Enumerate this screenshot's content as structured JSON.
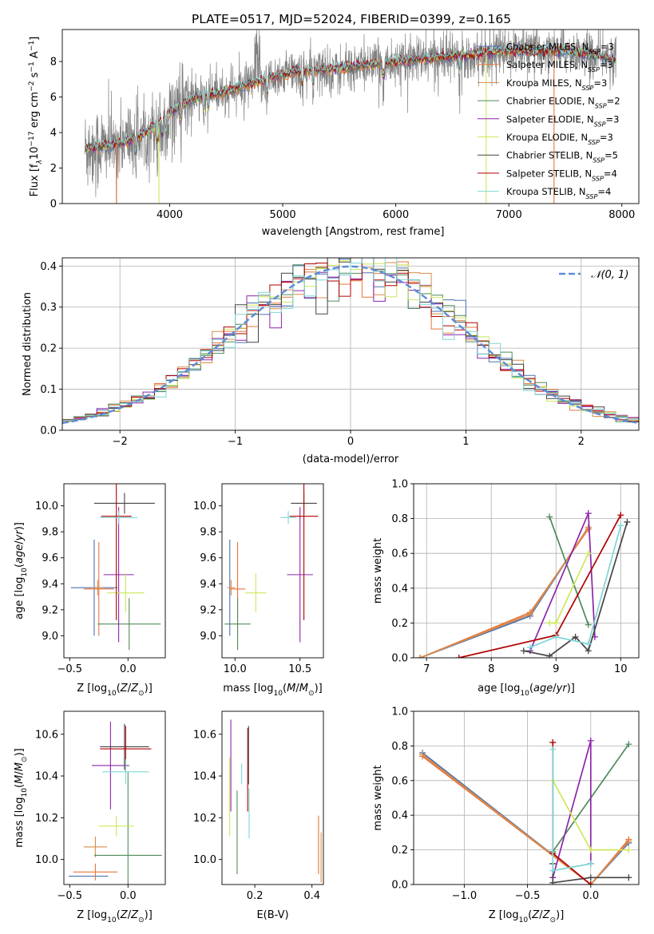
{
  "figure_title": "PLATE=0517, MJD=52024, FIBERID=0399, z=0.165",
  "colors": {
    "chabrier_miles": "#4c72b0",
    "salpeter_miles": "#e8743b",
    "kroupa_miles": "#d98c4a",
    "chabrier_elodie": "#4f8a5b",
    "salpeter_elodie": "#8e24aa",
    "kroupa_elodie": "#cde85a",
    "chabrier_stelib": "#444444",
    "salpeter_stelib": "#b00000",
    "kroupa_stelib": "#7fd6d6",
    "data": "#808080",
    "normal": "#5b8bd9"
  },
  "chart_data": [
    {
      "id": "spectrum",
      "type": "line",
      "title": "PLATE=0517, MJD=52024, FIBERID=0399, z=0.165",
      "xlabel": "wavelength [Angstrom, rest frame]",
      "ylabel": "Flux [f_λ 10^-17 erg cm^-2 s^-1 A^-1]",
      "xlim": [
        3050,
        8150
      ],
      "ylim": [
        0,
        9.8
      ],
      "xticks": [
        4000,
        5000,
        6000,
        7000,
        8000
      ],
      "yticks": [
        0,
        2,
        4,
        6,
        8
      ],
      "grid": false,
      "legend_position": "top-right",
      "data_series": {
        "name": "data",
        "x_range": [
          3250,
          7950
        ]
      },
      "model_continuum": [
        {
          "x": 3250,
          "y": 3.1
        },
        {
          "x": 3500,
          "y": 3.3
        },
        {
          "x": 3700,
          "y": 3.7
        },
        {
          "x": 3900,
          "y": 4.4
        },
        {
          "x": 4000,
          "y": 5.1
        },
        {
          "x": 4200,
          "y": 5.9
        },
        {
          "x": 4500,
          "y": 6.3
        },
        {
          "x": 4800,
          "y": 6.9
        },
        {
          "x": 5100,
          "y": 7.4
        },
        {
          "x": 5500,
          "y": 7.6
        },
        {
          "x": 6000,
          "y": 8.0
        },
        {
          "x": 6500,
          "y": 8.3
        },
        {
          "x": 7000,
          "y": 8.6
        },
        {
          "x": 7500,
          "y": 8.6
        },
        {
          "x": 7950,
          "y": 8.1
        }
      ],
      "series": [
        {
          "name": "Chabrier MILES, N_SSP=3",
          "label": "Chabrier MILES, N",
          "sub": "SSP",
          "suffix": "=3",
          "color_key": "chabrier_miles"
        },
        {
          "name": "Salpeter MILES, N_SSP=3",
          "label": "Salpeter MILES, N",
          "sub": "SSP",
          "suffix": "=3",
          "color_key": "salpeter_miles"
        },
        {
          "name": "Kroupa MILES, N_SSP=3",
          "label": "Kroupa MILES, N",
          "sub": "SSP",
          "suffix": "=3",
          "color_key": "kroupa_miles"
        },
        {
          "name": "Chabrier ELODIE, N_SSP=2",
          "label": "Chabrier ELODIE, N",
          "sub": "SSP",
          "suffix": "=2",
          "color_key": "chabrier_elodie"
        },
        {
          "name": "Salpeter ELODIE, N_SSP=3",
          "label": "Salpeter ELODIE, N",
          "sub": "SSP",
          "suffix": "=3",
          "color_key": "salpeter_elodie"
        },
        {
          "name": "Kroupa ELODIE, N_SSP=3",
          "label": "Kroupa ELODIE, N",
          "sub": "SSP",
          "suffix": "=3",
          "color_key": "kroupa_elodie"
        },
        {
          "name": "Chabrier STELIB, N_SSP=5",
          "label": "Chabrier STELIB, N",
          "sub": "SSP",
          "suffix": "=5",
          "color_key": "chabrier_stelib"
        },
        {
          "name": "Salpeter STELIB, N_SSP=4",
          "label": "Salpeter STELIB, N",
          "sub": "SSP",
          "suffix": "=4",
          "color_key": "salpeter_stelib"
        },
        {
          "name": "Kroupa STELIB, N_SSP=4",
          "label": "Kroupa STELIB, N",
          "sub": "SSP",
          "suffix": "=4",
          "color_key": "kroupa_stelib"
        }
      ]
    },
    {
      "id": "residuals",
      "type": "bar",
      "xlabel": "(data-model)/error",
      "ylabel": "Normed distribution",
      "xlim": [
        -2.5,
        2.5
      ],
      "ylim": [
        0,
        0.42
      ],
      "xticks": [
        -2,
        -1,
        0,
        1,
        2
      ],
      "yticks": [
        0.0,
        0.1,
        0.2,
        0.3,
        0.4
      ],
      "grid": true,
      "bin_width": 0.1,
      "reference_curve": {
        "name": "N(0,1)",
        "label": "𝒩(0, 1)",
        "mean": 0,
        "sigma": 1,
        "style": "dashed"
      },
      "legend_position": "top-right"
    },
    {
      "id": "age_vs_Z",
      "type": "scatter",
      "xlabel": "Z [log10(Z/Z⊙)]",
      "ylabel": "age  [log10(age/yr)]",
      "xlim": [
        -0.55,
        0.32
      ],
      "ylim": [
        8.83,
        10.17
      ],
      "xticks": [
        -0.5,
        0.0
      ],
      "yticks": [
        9.0,
        9.2,
        9.4,
        9.6,
        9.8,
        10.0
      ],
      "grid": false,
      "points": [
        {
          "model": "chabrier_miles",
          "x": -0.29,
          "y": 9.37,
          "xerr": 0.2,
          "yerr": 0.37
        },
        {
          "model": "salpeter_miles",
          "x": -0.25,
          "y": 9.36,
          "xerr": 0.13,
          "yerr": 0.36
        },
        {
          "model": "kroupa_miles",
          "x": -0.26,
          "y": 9.37,
          "xerr": 0.05,
          "yerr": 0.06
        },
        {
          "model": "chabrier_elodie",
          "x": 0.01,
          "y": 9.09,
          "xerr": 0.27,
          "yerr": 0.2
        },
        {
          "model": "salpeter_elodie",
          "x": -0.08,
          "y": 9.47,
          "xerr": 0.13,
          "yerr": 0.52
        },
        {
          "model": "kroupa_elodie",
          "x": -0.02,
          "y": 9.33,
          "xerr": 0.16,
          "yerr": 0.15
        },
        {
          "model": "chabrier_stelib",
          "x": -0.03,
          "y": 10.02,
          "xerr": 0.26,
          "yerr": 0.08
        },
        {
          "model": "salpeter_stelib",
          "x": -0.1,
          "y": 9.92,
          "xerr": 0.13,
          "yerr": 0.8
        },
        {
          "model": "kroupa_stelib",
          "x": -0.08,
          "y": 9.91,
          "xerr": 0.16,
          "yerr": 0.05
        }
      ]
    },
    {
      "id": "age_vs_mass",
      "type": "scatter",
      "xlabel": "mass [log10(M/M⊙)]",
      "ylabel": "",
      "xlim": [
        9.9,
        10.68
      ],
      "ylim": [
        8.83,
        10.17
      ],
      "xticks": [
        10.0,
        10.5
      ],
      "yticks": [
        9.0,
        9.2,
        9.4,
        9.6,
        9.8,
        10.0
      ],
      "grid": false,
      "points": [
        {
          "model": "chabrier_miles",
          "x": 9.96,
          "y": 9.37,
          "xerr": 0.0,
          "yerr": 0.37
        },
        {
          "model": "salpeter_miles",
          "x": 10.02,
          "y": 9.36,
          "xerr": 0.06,
          "yerr": 0.36
        },
        {
          "model": "kroupa_miles",
          "x": 9.97,
          "y": 9.37,
          "xerr": 0.03,
          "yerr": 0.06
        },
        {
          "model": "chabrier_elodie",
          "x": 10.02,
          "y": 9.09,
          "xerr": 0.1,
          "yerr": 0.2
        },
        {
          "model": "salpeter_elodie",
          "x": 10.5,
          "y": 9.47,
          "xerr": 0.1,
          "yerr": 0.52
        },
        {
          "model": "kroupa_elodie",
          "x": 10.16,
          "y": 9.33,
          "xerr": 0.08,
          "yerr": 0.15
        },
        {
          "model": "chabrier_stelib",
          "x": 10.53,
          "y": 10.02,
          "xerr": 0.1,
          "yerr": 0.08
        },
        {
          "model": "salpeter_stelib",
          "x": 10.53,
          "y": 9.92,
          "xerr": 0.11,
          "yerr": 0.8
        },
        {
          "model": "kroupa_stelib",
          "x": 10.41,
          "y": 9.91,
          "xerr": 0.06,
          "yerr": 0.05
        }
      ]
    },
    {
      "id": "mass_weight_vs_age",
      "type": "line",
      "xlabel": "age  [log10(age/yr)]",
      "ylabel": "mass weight",
      "xlim": [
        6.8,
        10.28
      ],
      "ylim": [
        0.0,
        1.0
      ],
      "xticks": [
        7,
        8,
        9,
        10
      ],
      "yticks": [
        0.0,
        0.2,
        0.4,
        0.6,
        0.8,
        1.0
      ],
      "grid": true,
      "series": [
        {
          "model": "chabrier_miles",
          "x": [
            6.9,
            8.6,
            9.5
          ],
          "y": [
            0.0,
            0.24,
            0.75
          ]
        },
        {
          "model": "salpeter_miles",
          "x": [
            6.9,
            8.6,
            9.5
          ],
          "y": [
            0.0,
            0.26,
            0.74
          ]
        },
        {
          "model": "kroupa_miles",
          "x": [
            6.9,
            8.6,
            9.5
          ],
          "y": [
            0.0,
            0.25,
            0.75
          ]
        },
        {
          "model": "chabrier_elodie",
          "x": [
            8.9,
            9.5
          ],
          "y": [
            0.81,
            0.19
          ]
        },
        {
          "model": "salpeter_elodie",
          "x": [
            8.6,
            9.5,
            9.6
          ],
          "y": [
            0.04,
            0.83,
            0.12
          ]
        },
        {
          "model": "kroupa_elodie",
          "x": [
            8.9,
            9.0,
            9.5
          ],
          "y": [
            0.2,
            0.2,
            0.6
          ]
        },
        {
          "model": "chabrier_stelib",
          "x": [
            8.5,
            8.9,
            9.3,
            9.5,
            10.1
          ],
          "y": [
            0.04,
            0.01,
            0.12,
            0.04,
            0.78
          ]
        },
        {
          "model": "salpeter_stelib",
          "x": [
            7.5,
            9.0,
            10.0
          ],
          "y": [
            0.0,
            0.13,
            0.82
          ]
        },
        {
          "model": "kroupa_stelib",
          "x": [
            8.6,
            9.0,
            9.5,
            10.0
          ],
          "y": [
            0.06,
            0.12,
            0.08,
            0.76
          ]
        }
      ]
    },
    {
      "id": "mass_vs_Z",
      "type": "scatter",
      "xlabel": "Z [log10(Z/Z⊙)]",
      "ylabel": "mass [log10(M/M⊙)]",
      "xlim": [
        -0.55,
        0.32
      ],
      "ylim": [
        9.88,
        10.71
      ],
      "xticks": [
        -0.5,
        0.0
      ],
      "yticks": [
        10.0,
        10.2,
        10.4,
        10.6
      ],
      "grid": false,
      "points": [
        {
          "model": "chabrier_miles",
          "x": -0.34,
          "y": 9.92,
          "xerr": 0.17,
          "yerr": 0.0
        },
        {
          "model": "salpeter_miles",
          "x": -0.28,
          "y": 9.94,
          "xerr": 0.19,
          "yerr": 0.04
        },
        {
          "model": "kroupa_miles",
          "x": -0.28,
          "y": 10.06,
          "xerr": 0.1,
          "yerr": 0.05
        },
        {
          "model": "chabrier_elodie",
          "x": 0.0,
          "y": 10.02,
          "xerr": 0.29,
          "yerr": 0.4
        },
        {
          "model": "salpeter_elodie",
          "x": -0.15,
          "y": 10.45,
          "xerr": 0.16,
          "yerr": 0.21
        },
        {
          "model": "kroupa_elodie",
          "x": -0.1,
          "y": 10.16,
          "xerr": 0.15,
          "yerr": 0.05
        },
        {
          "model": "chabrier_stelib",
          "x": -0.03,
          "y": 10.54,
          "xerr": 0.21,
          "yerr": 0.11
        },
        {
          "model": "salpeter_stelib",
          "x": -0.02,
          "y": 10.53,
          "xerr": 0.22,
          "yerr": 0.11
        },
        {
          "model": "kroupa_stelib",
          "x": -0.02,
          "y": 10.42,
          "xerr": 0.2,
          "yerr": 0.06
        }
      ]
    },
    {
      "id": "mass_vs_ebv",
      "type": "scatter",
      "xlabel": "E(B-V)",
      "ylabel": "",
      "xlim": [
        0.085,
        0.44
      ],
      "ylim": [
        9.88,
        10.71
      ],
      "xticks": [
        0.2,
        0.4
      ],
      "yticks": [
        10.0,
        10.2,
        10.4,
        10.6
      ],
      "grid": false,
      "points": [
        {
          "model": "kroupa_elodie",
          "x": 0.112,
          "y": 10.3,
          "yerr": 0.19
        },
        {
          "model": "salpeter_elodie",
          "x": 0.116,
          "y": 10.45,
          "yerr": 0.22
        },
        {
          "model": "chabrier_elodie",
          "x": 0.138,
          "y": 10.13,
          "yerr": 0.2
        },
        {
          "model": "kroupa_stelib",
          "x": 0.154,
          "y": 10.41,
          "yerr": 0.05
        },
        {
          "model": "salpeter_stelib",
          "x": 0.175,
          "y": 10.43,
          "yerr": 0.2
        },
        {
          "model": "kroupa_stelib",
          "x": 0.18,
          "y": 10.22,
          "yerr": 0.12
        },
        {
          "model": "chabrier_stelib",
          "x": 0.178,
          "y": 10.5,
          "yerr": 0.14
        },
        {
          "model": "salpeter_miles",
          "x": 0.423,
          "y": 10.07,
          "yerr": 0.14
        },
        {
          "model": "kroupa_miles",
          "x": 0.432,
          "y": 10.01,
          "yerr": 0.12
        }
      ]
    },
    {
      "id": "mass_weight_vs_Z",
      "type": "line",
      "xlabel": "Z [log10(Z/Z⊙)]",
      "ylabel": "mass weight",
      "xlim": [
        -1.4,
        0.38
      ],
      "ylim": [
        0.0,
        1.0
      ],
      "xticks": [
        -1.0,
        -0.5,
        0.0
      ],
      "yticks": [
        0.0,
        0.2,
        0.4,
        0.6,
        0.8,
        1.0
      ],
      "grid": true,
      "series": [
        {
          "model": "chabrier_miles",
          "x": [
            -1.33,
            0.0,
            0.3
          ],
          "y": [
            0.76,
            0.0,
            0.24
          ]
        },
        {
          "model": "salpeter_miles",
          "x": [
            -1.33,
            0.0,
            0.3
          ],
          "y": [
            0.74,
            0.0,
            0.26
          ]
        },
        {
          "model": "kroupa_miles",
          "x": [
            -1.33,
            0.0,
            0.3
          ],
          "y": [
            0.75,
            0.0,
            0.25
          ]
        },
        {
          "model": "chabrier_elodie",
          "x": [
            -0.3,
            0.3
          ],
          "y": [
            0.19,
            0.81
          ]
        },
        {
          "model": "salpeter_elodie",
          "x": [
            -0.3,
            0.0,
            0.0
          ],
          "y": [
            0.04,
            0.83,
            0.12
          ]
        },
        {
          "model": "kroupa_elodie",
          "x": [
            -0.3,
            0.0,
            0.3
          ],
          "y": [
            0.6,
            0.2,
            0.2
          ]
        },
        {
          "model": "chabrier_stelib",
          "x": [
            -0.3,
            -0.3,
            0.0,
            0.3
          ],
          "y": [
            0.12,
            0.01,
            0.04,
            0.04
          ]
        },
        {
          "model": "salpeter_stelib",
          "x": [
            -0.3,
            -0.3,
            0.0
          ],
          "y": [
            0.82,
            0.18,
            0.0
          ]
        },
        {
          "model": "kroupa_stelib",
          "x": [
            -0.3,
            -0.3,
            0.0
          ],
          "y": [
            0.78,
            0.08,
            0.12
          ]
        }
      ]
    }
  ]
}
